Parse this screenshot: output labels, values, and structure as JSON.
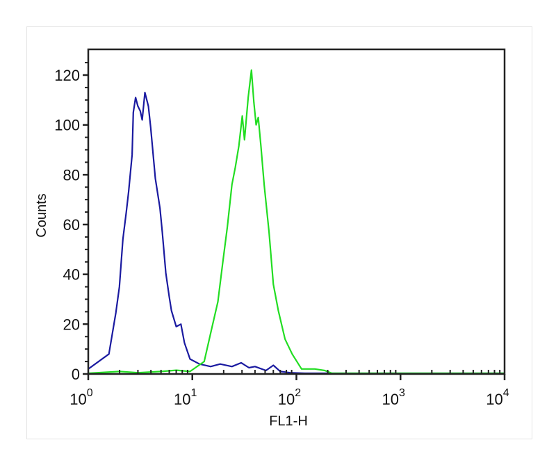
{
  "chart_data": {
    "type": "line",
    "title": "",
    "xlabel": "FL1-H",
    "ylabel": "Counts",
    "x_scale": "log",
    "xlim": [
      1,
      10000
    ],
    "ylim": [
      0,
      130
    ],
    "x_ticks": [
      {
        "base": "10",
        "exp": "0",
        "value": 1
      },
      {
        "base": "10",
        "exp": "1",
        "value": 10
      },
      {
        "base": "10",
        "exp": "2",
        "value": 100
      },
      {
        "base": "10",
        "exp": "3",
        "value": 1000
      },
      {
        "base": "10",
        "exp": "4",
        "value": 10000
      }
    ],
    "y_ticks": [
      "0",
      "20",
      "40",
      "60",
      "80",
      "100",
      "120"
    ],
    "grid": false,
    "series": [
      {
        "color": "#1a1aa0",
        "points": [
          [
            1.0,
            2
          ],
          [
            1.58,
            8
          ],
          [
            1.84,
            24.6
          ],
          [
            1.99,
            35
          ],
          [
            2.15,
            54
          ],
          [
            2.32,
            65
          ],
          [
            2.44,
            73
          ],
          [
            2.64,
            88
          ],
          [
            2.71,
            105
          ],
          [
            2.85,
            111
          ],
          [
            3.0,
            107.5
          ],
          [
            3.16,
            105.6
          ],
          [
            3.3,
            102
          ],
          [
            3.5,
            113
          ],
          [
            3.78,
            107.5
          ],
          [
            3.98,
            99
          ],
          [
            4.41,
            78.5
          ],
          [
            4.89,
            66.5
          ],
          [
            5.14,
            57
          ],
          [
            5.56,
            40.5
          ],
          [
            6.0,
            31
          ],
          [
            6.3,
            25.4
          ],
          [
            7.0,
            19
          ],
          [
            7.76,
            20
          ],
          [
            8.4,
            12.5
          ],
          [
            9.5,
            6
          ],
          [
            11.7,
            4
          ],
          [
            15,
            3
          ],
          [
            18.5,
            4
          ],
          [
            24,
            3
          ],
          [
            29.5,
            4.5
          ],
          [
            35,
            2.5
          ],
          [
            40,
            3
          ],
          [
            51,
            1.4
          ],
          [
            60,
            3.5
          ],
          [
            70,
            1
          ],
          [
            87,
            0.5
          ],
          [
            120,
            0
          ],
          [
            10000,
            0
          ]
        ]
      },
      {
        "color": "#22dd22",
        "points": [
          [
            1.0,
            0
          ],
          [
            2,
            1
          ],
          [
            3,
            0.5
          ],
          [
            5,
            1
          ],
          [
            7,
            1.5
          ],
          [
            9.5,
            1
          ],
          [
            13,
            5
          ],
          [
            15.1,
            17
          ],
          [
            17.6,
            29
          ],
          [
            19.5,
            44
          ],
          [
            21.7,
            59
          ],
          [
            24,
            76
          ],
          [
            25.9,
            83
          ],
          [
            28,
            91.6
          ],
          [
            30.2,
            103.6
          ],
          [
            31.7,
            94
          ],
          [
            34.4,
            111
          ],
          [
            37,
            122
          ],
          [
            39,
            109
          ],
          [
            41,
            100
          ],
          [
            43,
            103
          ],
          [
            45.6,
            91.6
          ],
          [
            49,
            76
          ],
          [
            54.6,
            57
          ],
          [
            60,
            36
          ],
          [
            67,
            25.4
          ],
          [
            77.7,
            14
          ],
          [
            91,
            8
          ],
          [
            112,
            2
          ],
          [
            150,
            2
          ],
          [
            187,
            1.4
          ],
          [
            220,
            0
          ],
          [
            10000,
            0
          ]
        ]
      }
    ]
  }
}
